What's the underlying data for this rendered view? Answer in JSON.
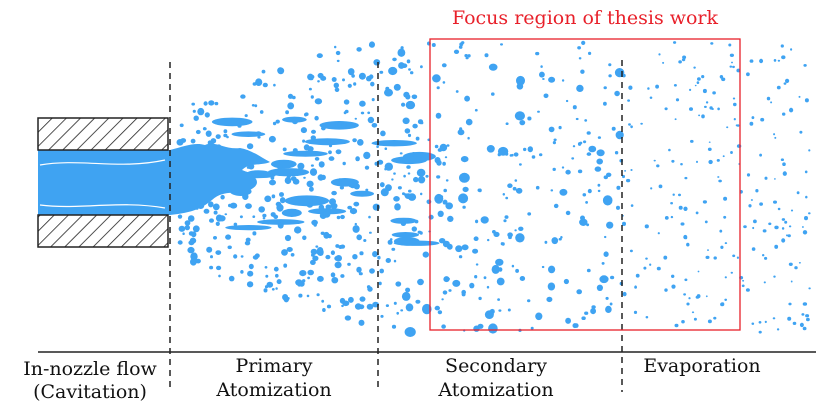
{
  "annotation": "Focus region of thesis work",
  "stages": [
    {
      "lines": [
        "In-nozzle flow",
        "(Cavitation)"
      ]
    },
    {
      "lines": [
        "Primary",
        "Atomization"
      ]
    },
    {
      "lines": [
        "Secondary",
        "Atomization"
      ]
    },
    {
      "lines": [
        "Evaporation"
      ]
    }
  ]
}
